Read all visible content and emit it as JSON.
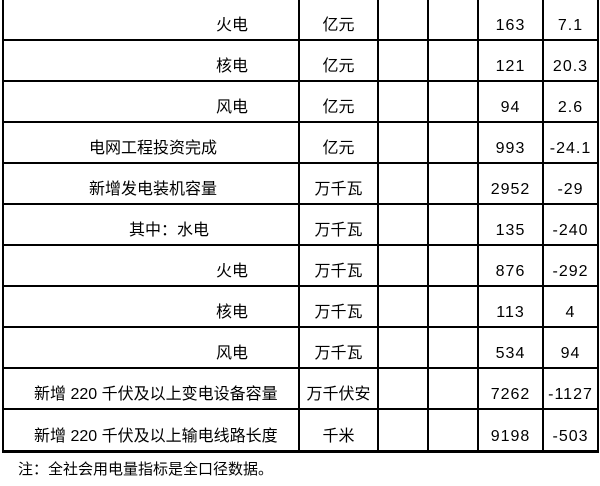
{
  "table": {
    "columns": [
      "indicator",
      "unit",
      "col3",
      "col4",
      "value",
      "change"
    ],
    "rows": [
      {
        "indicator": "火电",
        "unit": "亿元",
        "value": "163",
        "change": "7.1",
        "indent": "l4"
      },
      {
        "indicator": "核电",
        "unit": "亿元",
        "value": "121",
        "change": "20.3",
        "indent": "l4"
      },
      {
        "indicator": "风电",
        "unit": "亿元",
        "value": "94",
        "change": "2.6",
        "indent": "l4"
      },
      {
        "indicator": "电网工程投资完成",
        "unit": "亿元",
        "value": "993",
        "change": "-24.1",
        "indent": "l2"
      },
      {
        "indicator": "新增发电装机容量",
        "unit": "万千瓦",
        "value": "2952",
        "change": "-29",
        "indent": "l2"
      },
      {
        "indicator": "其中：水电",
        "unit": "万千瓦",
        "value": "135",
        "change": "-240",
        "indent": "l3"
      },
      {
        "indicator": "火电",
        "unit": "万千瓦",
        "value": "876",
        "change": "-292",
        "indent": "l4"
      },
      {
        "indicator": "核电",
        "unit": "万千瓦",
        "value": "113",
        "change": "4",
        "indent": "l4"
      },
      {
        "indicator": "风电",
        "unit": "万千瓦",
        "value": "534",
        "change": "94",
        "indent": "l4"
      },
      {
        "indicator": "新增 220 千伏及以上变电设备容量",
        "unit": "万千伏安",
        "value": "7262",
        "change": "-1127",
        "indent": "l1"
      },
      {
        "indicator": "新增 220 千伏及以上输电线路长度",
        "unit": "千米",
        "value": "9198",
        "change": "-503",
        "indent": "l1"
      }
    ]
  },
  "note": "注：全社会用电量指标是全口径数据。"
}
